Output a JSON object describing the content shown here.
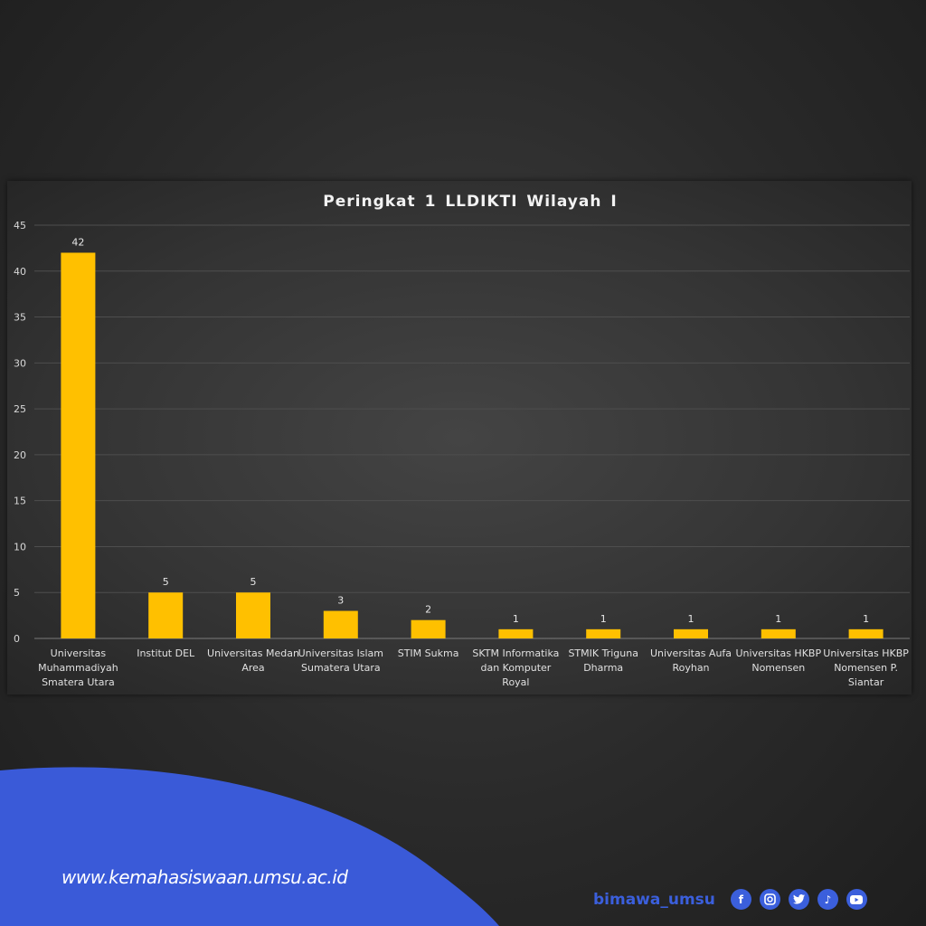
{
  "chart_data": {
    "type": "bar",
    "title": "Peringkat 1 LLDIKTI Wilayah I",
    "categories": [
      "Universitas Muhammadiyah Smatera Utara",
      "Institut DEL",
      "Universitas Medan Area",
      "Universitas Islam Sumatera Utara",
      "STIM Sukma",
      "SKTM Informatika dan Komputer Royal",
      "STMIK Triguna Dharma",
      "Universitas Aufa Royhan",
      "Universitas HKBP Nomensen",
      "Universitas HKBP Nomensen P. Siantar"
    ],
    "category_lines": [
      [
        "Universitas",
        "Muhammadiyah",
        "Smatera Utara"
      ],
      [
        "Institut DEL"
      ],
      [
        "Universitas Medan",
        "Area"
      ],
      [
        "Universitas Islam",
        "Sumatera Utara"
      ],
      [
        "STIM Sukma"
      ],
      [
        "SKTM Informatika",
        "dan Komputer",
        "Royal"
      ],
      [
        "STMIK Triguna",
        "Dharma"
      ],
      [
        "Universitas Aufa",
        "Royhan"
      ],
      [
        "Universitas HKBP",
        "Nomensen"
      ],
      [
        "Universitas HKBP",
        "Nomensen P.",
        "Siantar"
      ]
    ],
    "values": [
      42,
      5,
      5,
      3,
      2,
      1,
      1,
      1,
      1,
      1
    ],
    "ylim": [
      0,
      45
    ],
    "yticks": [
      0,
      5,
      10,
      15,
      20,
      25,
      30,
      35,
      40,
      45
    ],
    "grid": true,
    "data_labels": true,
    "xlabel": "",
    "ylabel": "",
    "bar_color": "#ffc000"
  },
  "footer": {
    "website": "www.kemahasiswaan.umsu.ac.id",
    "handle": "bimawa_umsu",
    "social_icons": [
      "facebook-icon",
      "instagram-icon",
      "twitter-icon",
      "tiktok-icon",
      "youtube-icon"
    ],
    "accent_color": "#3b5fdc"
  }
}
